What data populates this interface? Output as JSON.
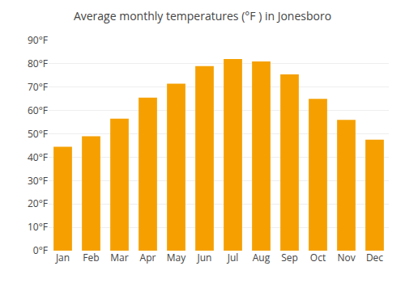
{
  "chart_data": {
    "type": "bar",
    "title": "Average monthly temperatures (°F ) in Jonesboro",
    "categories": [
      "Jan",
      "Feb",
      "Mar",
      "Apr",
      "May",
      "Jun",
      "Jul",
      "Aug",
      "Sep",
      "Oct",
      "Nov",
      "Dec"
    ],
    "values": [
      44.5,
      49.0,
      56.5,
      65.5,
      71.5,
      79.0,
      82.0,
      81.0,
      75.5,
      65.0,
      56.0,
      47.5
    ],
    "color": "#F5A000",
    "ylim": [
      0,
      90
    ],
    "yticks": [
      {
        "value": 0,
        "label": "0°F"
      },
      {
        "value": 10,
        "label": "10°F"
      },
      {
        "value": 20,
        "label": "20°F"
      },
      {
        "value": 30,
        "label": "30°F"
      },
      {
        "value": 40,
        "label": "40°F"
      },
      {
        "value": 50,
        "label": "50°F"
      },
      {
        "value": 60,
        "label": "60°F"
      },
      {
        "value": 70,
        "label": "70°F"
      },
      {
        "value": 80,
        "label": "80°F"
      },
      {
        "value": 90,
        "label": "90°F"
      }
    ],
    "grid": true
  }
}
